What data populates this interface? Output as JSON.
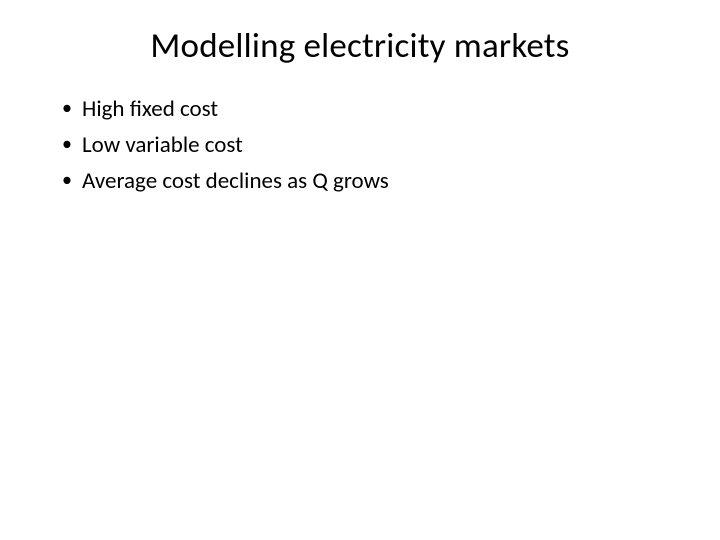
{
  "slide": {
    "title": "Modelling electricity markets",
    "bullets": [
      "High fixed cost",
      "Low variable cost",
      "Average cost declines as Q grows"
    ],
    "styling": {
      "background_color": "#ffffff",
      "text_color": "#000000",
      "title_fontsize": 35,
      "title_fontweight": 400,
      "title_align": "center",
      "body_fontsize": 23,
      "body_fontweight": 400,
      "font_family": "Calibri",
      "bullet_marker": "•",
      "slide_width": 720,
      "slide_height": 540
    }
  }
}
